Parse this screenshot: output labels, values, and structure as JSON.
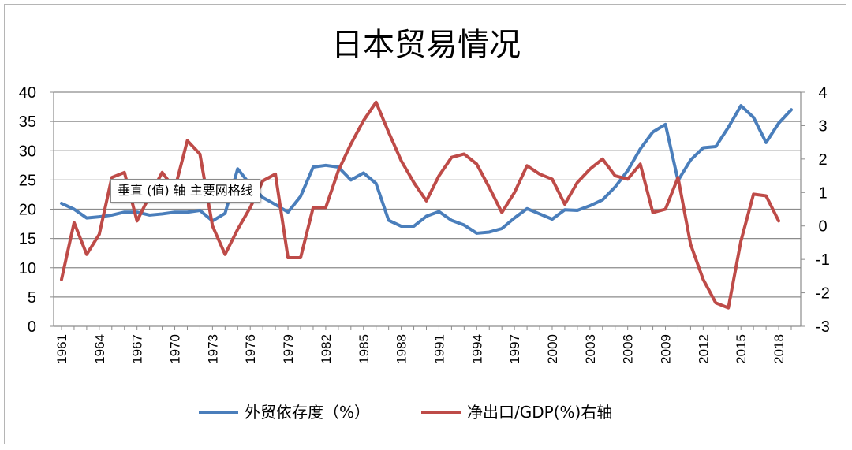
{
  "chart_data": {
    "type": "line",
    "title": "日本贸易情况",
    "categories": [
      "1961",
      "1962",
      "1963",
      "1964",
      "1965",
      "1966",
      "1967",
      "1968",
      "1969",
      "1970",
      "1971",
      "1972",
      "1973",
      "1974",
      "1975",
      "1976",
      "1977",
      "1978",
      "1979",
      "1980",
      "1981",
      "1982",
      "1983",
      "1984",
      "1985",
      "1986",
      "1987",
      "1988",
      "1989",
      "1990",
      "1991",
      "1992",
      "1993",
      "1994",
      "1995",
      "1996",
      "1997",
      "1998",
      "1999",
      "2000",
      "2001",
      "2002",
      "2003",
      "2004",
      "2005",
      "2006",
      "2007",
      "2008",
      "2009",
      "2010",
      "2011",
      "2012",
      "2013",
      "2014",
      "2015",
      "2016",
      "2017",
      "2018",
      "2019"
    ],
    "x_tick_labels": [
      "1961",
      "1964",
      "1967",
      "1970",
      "1973",
      "1976",
      "1979",
      "1982",
      "1985",
      "1988",
      "1991",
      "1994",
      "1997",
      "2000",
      "2003",
      "2006",
      "2009",
      "2012",
      "2015",
      "2018"
    ],
    "y_left": {
      "min": 0,
      "max": 40,
      "ticks": [
        "0",
        "5",
        "10",
        "15",
        "20",
        "25",
        "30",
        "35",
        "40"
      ]
    },
    "y_right": {
      "min": -3,
      "max": 4,
      "ticks": [
        "-3",
        "-2",
        "-1",
        "0",
        "1",
        "2",
        "3",
        "4"
      ]
    },
    "series": [
      {
        "name": "外贸依存度（%）",
        "axis": "left",
        "color": "#4a7ebb",
        "values": [
          21.0,
          20.0,
          18.5,
          18.7,
          19.0,
          19.5,
          19.5,
          19.0,
          19.2,
          19.5,
          19.5,
          19.8,
          18.0,
          19.3,
          26.9,
          24.2,
          22.0,
          20.8,
          19.5,
          22.2,
          27.2,
          27.5,
          27.2,
          25.0,
          26.2,
          24.4,
          18.1,
          17.1,
          17.1,
          18.8,
          19.6,
          18.1,
          17.3,
          15.9,
          16.1,
          16.7,
          18.5,
          20.1,
          19.2,
          18.3,
          19.9,
          19.8,
          20.6,
          21.6,
          23.8,
          26.6,
          30.3,
          33.2,
          34.5,
          24.9,
          28.4,
          30.5,
          30.7,
          34.0,
          37.7,
          35.7,
          31.4,
          34.7,
          37.0
        ]
      },
      {
        "name": "净出口/GDP(%)右轴",
        "axis": "right",
        "color": "#be4b48",
        "values": [
          -1.6,
          0.1,
          -0.85,
          -0.25,
          1.45,
          1.6,
          0.15,
          0.9,
          1.6,
          1.1,
          2.55,
          2.15,
          0.0,
          -0.85,
          -0.1,
          0.55,
          1.35,
          1.55,
          -0.95,
          -0.95,
          0.55,
          0.55,
          1.65,
          2.45,
          3.15,
          3.7,
          2.8,
          1.95,
          1.3,
          0.75,
          1.5,
          2.05,
          2.15,
          1.85,
          1.15,
          0.4,
          1.0,
          1.8,
          1.55,
          1.4,
          0.65,
          1.3,
          1.7,
          2.0,
          1.5,
          1.4,
          1.85,
          0.4,
          0.5,
          1.45,
          -0.55,
          -1.6,
          -2.3,
          -2.45,
          -0.45,
          0.95,
          0.9,
          0.15,
          null
        ]
      }
    ],
    "legend_position": "bottom",
    "grid": true
  },
  "tooltip": {
    "text": "垂直 (值) 轴 主要网格线"
  }
}
